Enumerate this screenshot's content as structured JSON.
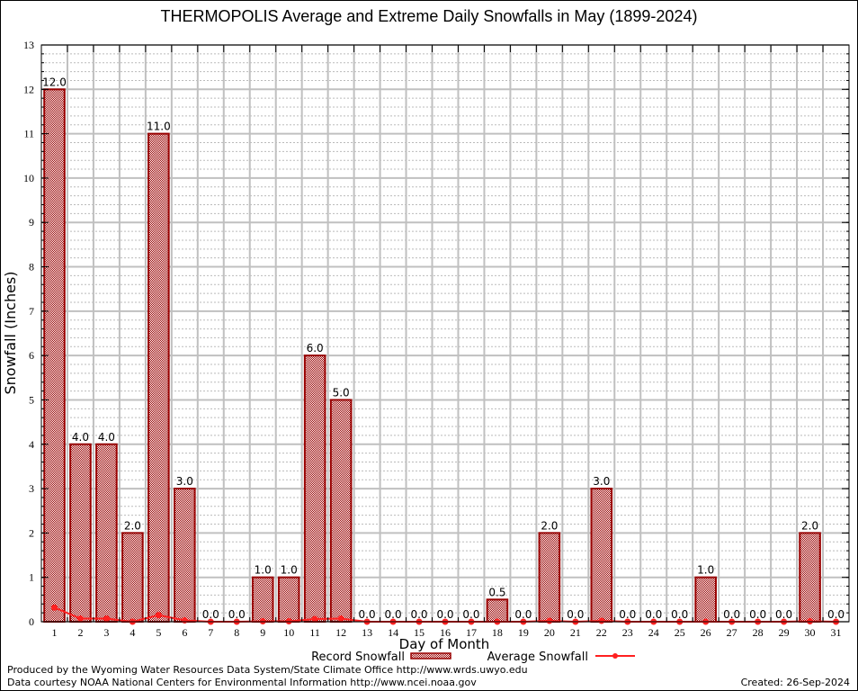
{
  "chart_data": {
    "type": "bar",
    "title": "THERMOPOLIS Average and Extreme Daily Snowfalls in May (1899-2024)",
    "xlabel": "Day of Month",
    "ylabel": "Snowfall (Inches)",
    "ylim": [
      0,
      13
    ],
    "yticks": [
      "0",
      "1",
      "2",
      "3",
      "4",
      "5",
      "6",
      "7",
      "8",
      "9",
      "10",
      "11",
      "12",
      "13"
    ],
    "categories": [
      "1",
      "2",
      "3",
      "4",
      "5",
      "6",
      "7",
      "8",
      "9",
      "10",
      "11",
      "12",
      "13",
      "14",
      "15",
      "16",
      "17",
      "18",
      "19",
      "20",
      "21",
      "22",
      "23",
      "24",
      "25",
      "26",
      "27",
      "28",
      "29",
      "30",
      "31"
    ],
    "grid": true,
    "legend_position": "bottom",
    "series": [
      {
        "name": "Record Snowfall",
        "type": "bar",
        "color": "#990000",
        "values": [
          12.0,
          4.0,
          4.0,
          2.0,
          11.0,
          3.0,
          0.0,
          0.0,
          1.0,
          1.0,
          6.0,
          5.0,
          0.0,
          0.0,
          0.0,
          0.0,
          0.0,
          0.5,
          0.0,
          2.0,
          0.0,
          3.0,
          0.0,
          0.0,
          0.0,
          1.0,
          0.0,
          0.0,
          0.0,
          2.0,
          0.0
        ],
        "labels": [
          "12.0",
          "4.0",
          "4.0",
          "2.0",
          "11.0",
          "3.0",
          "0.0",
          "0.0",
          "1.0",
          "1.0",
          "6.0",
          "5.0",
          "0.0",
          "0.0",
          "0.0",
          "0.0",
          "0.0",
          "0.5",
          "0.0",
          "2.0",
          "0.0",
          "3.0",
          "0.0",
          "0.0",
          "0.0",
          "1.0",
          "0.0",
          "0.0",
          "0.0",
          "2.0",
          "0.0"
        ]
      },
      {
        "name": "Average Snowfall",
        "type": "line",
        "color": "#ff2020",
        "values": [
          0.32,
          0.07,
          0.07,
          0.0,
          0.15,
          0.03,
          0.0,
          0.0,
          0.01,
          0.01,
          0.06,
          0.07,
          0.0,
          0.0,
          0.0,
          0.0,
          0.0,
          0.0,
          0.0,
          0.02,
          0.0,
          0.02,
          0.0,
          0.0,
          0.0,
          0.0,
          0.0,
          0.0,
          0.0,
          0.01,
          0.0
        ]
      }
    ]
  },
  "footer": {
    "produced_by": "Produced by the Wyoming Water Resources Data System/State Climate Office http://www.wrds.uwyo.edu",
    "data_courtesy": "Data courtesy NOAA National Centers for Environmental Information http://www.ncei.noaa.gov",
    "created": "Created: 26-Sep-2024"
  }
}
